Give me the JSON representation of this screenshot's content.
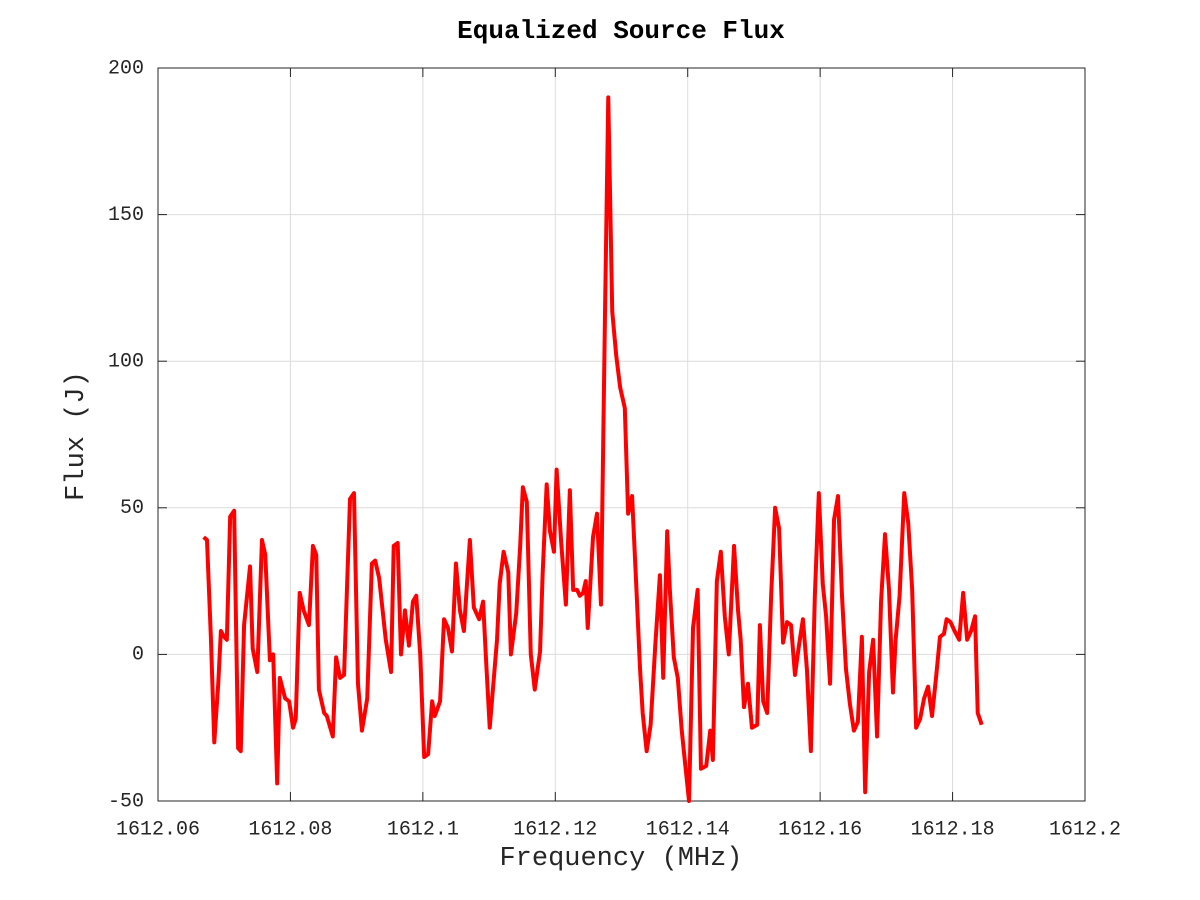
{
  "chart_data": {
    "type": "line",
    "title": "Equalized Source Flux",
    "xlabel": "Frequency (MHz)",
    "ylabel": "Flux (J)",
    "color": "#ff0000",
    "grid": true,
    "xlim": [
      1612.06,
      1612.2
    ],
    "xticks": [
      1612.06,
      1612.08,
      1612.1,
      1612.12,
      1612.14,
      1612.16,
      1612.18,
      1612.2
    ],
    "ylim": [
      -50,
      200
    ],
    "yticks": [
      -50,
      0,
      50,
      100,
      150,
      200
    ],
    "x": [
      1612.0669,
      1612.0674,
      1612.068,
      1612.0685,
      1612.0691,
      1612.0695,
      1612.07,
      1612.0704,
      1612.0709,
      1612.0715,
      1612.0721,
      1612.0725,
      1612.073,
      1612.0739,
      1612.0743,
      1612.075,
      1612.0757,
      1612.0762,
      1612.0769,
      1612.0774,
      1612.078,
      1612.0784,
      1612.0792,
      1612.0798,
      1612.0804,
      1612.0808,
      1612.0814,
      1612.082,
      1612.0828,
      1612.0834,
      1612.0839,
      1612.0843,
      1612.0851,
      1612.0855,
      1612.0864,
      1612.0869,
      1612.0875,
      1612.0881,
      1612.089,
      1612.0896,
      1612.0902,
      1612.0908,
      1612.0916,
      1612.0923,
      1612.0928,
      1612.0934,
      1612.0944,
      1612.0952,
      1612.0956,
      1612.0962,
      1612.0967,
      1612.0973,
      1612.0979,
      1612.0985,
      1612.099,
      1612.0996,
      1612.1002,
      1612.1008,
      1612.1014,
      1612.1018,
      1612.1026,
      1612.1032,
      1612.1038,
      1612.1044,
      1612.105,
      1612.1056,
      1612.1062,
      1612.1071,
      1612.1077,
      1612.1085,
      1612.1091,
      1612.1095,
      1612.1101,
      1612.1112,
      1612.1116,
      1612.1122,
      1612.1129,
      1612.1133,
      1612.1141,
      1612.1147,
      1612.1151,
      1612.1157,
      1612.1163,
      1612.1169,
      1612.1177,
      1612.1181,
      1612.1187,
      1612.1192,
      1612.1198,
      1612.1202,
      1612.1209,
      1612.1216,
      1612.1222,
      1612.1227,
      1612.1233,
      1612.1237,
      1612.1242,
      1612.1246,
      1612.1249,
      1612.1257,
      1612.1263,
      1612.1269,
      1612.1275,
      1612.128,
      1612.1286,
      1612.1292,
      1612.1298,
      1612.1305,
      1612.131,
      1612.1316,
      1612.1322,
      1612.1328,
      1612.1332,
      1612.1338,
      1612.1344,
      1612.1351,
      1612.1358,
      1612.1363,
      1612.1369,
      1612.1373,
      1612.1379,
      1612.1385,
      1612.1391,
      1612.1396,
      1612.1402,
      1612.1408,
      1612.1415,
      1612.142,
      1612.1428,
      1612.1434,
      1612.1438,
      1612.1444,
      1612.145,
      1612.1456,
      1612.1462,
      1612.147,
      1612.1476,
      1612.148,
      1612.1485,
      1612.1491,
      1612.1497,
      1612.1505,
      1612.1509,
      1612.1514,
      1612.152,
      1612.1526,
      1612.1532,
      1612.1538,
      1612.1544,
      1612.155,
      1612.1556,
      1612.1562,
      1612.1568,
      1612.1574,
      1612.158,
      1612.1586,
      1612.1592,
      1612.1598,
      1612.1604,
      1612.1609,
      1612.1615,
      1612.1621,
      1612.1627,
      1612.1633,
      1612.1639,
      1612.1645,
      1612.1651,
      1612.1657,
      1612.1663,
      1612.1668,
      1612.1674,
      1612.168,
      1612.1686,
      1612.1692,
      1612.1698,
      1612.1704,
      1612.171,
      1612.1714,
      1612.172,
      1612.1727,
      1612.1733,
      1612.1739,
      1612.1745,
      1612.1751,
      1612.1757,
      1612.1763,
      1612.1769,
      1612.1775,
      1612.1781,
      1612.1787,
      1612.1791,
      1612.1797,
      1612.1803,
      1612.181,
      1612.1816,
      1612.1822,
      1612.1828,
      1612.1834,
      1612.1838,
      1612.1844
    ],
    "values": [
      40,
      39,
      5,
      -30,
      -10,
      8,
      6,
      5,
      47,
      49,
      -32,
      -33,
      10,
      30,
      2,
      -6,
      39,
      34,
      -2,
      0,
      -44,
      -8,
      -15,
      -16,
      -25,
      -22,
      21,
      15,
      10,
      37,
      34,
      -12,
      -20,
      -21,
      -28,
      -1,
      -8,
      -7,
      53,
      55,
      -10,
      -26,
      -15,
      31,
      32,
      26,
      5,
      -6,
      37,
      38,
      0,
      15,
      3,
      18,
      20,
      0,
      -35,
      -34,
      -16,
      -21,
      -16,
      12,
      9,
      1,
      31,
      15,
      8,
      39,
      16,
      12,
      18,
      0,
      -25,
      5,
      24,
      35,
      28,
      0,
      14,
      37,
      57,
      52,
      0,
      -12,
      1,
      28,
      58,
      42,
      35,
      63,
      38,
      17,
      56,
      22,
      22,
      20,
      21,
      25,
      9,
      40,
      48,
      17,
      115,
      190,
      117,
      102,
      91,
      84,
      48,
      54,
      25,
      -5,
      -20,
      -33,
      -24,
      3,
      27,
      -8,
      42,
      22,
      -1,
      -8,
      -26,
      -37,
      -50,
      9,
      22,
      -39,
      -38,
      -26,
      -36,
      25,
      35,
      13,
      0,
      37,
      15,
      5,
      -18,
      -10,
      -25,
      -24,
      10,
      -16,
      -20,
      20,
      50,
      43,
      4,
      11,
      10,
      -7,
      3,
      12,
      -5,
      -33,
      20,
      55,
      24,
      13,
      -10,
      46,
      54,
      20,
      -5,
      -17,
      -26,
      -23,
      6,
      -47,
      -6,
      5,
      -28,
      18,
      41,
      22,
      -13,
      5,
      20,
      55,
      45,
      22,
      -25,
      -22,
      -15,
      -11,
      -21,
      -8,
      6,
      7,
      12,
      11,
      8,
      5,
      21,
      5,
      8,
      13,
      -20,
      -24
    ]
  }
}
